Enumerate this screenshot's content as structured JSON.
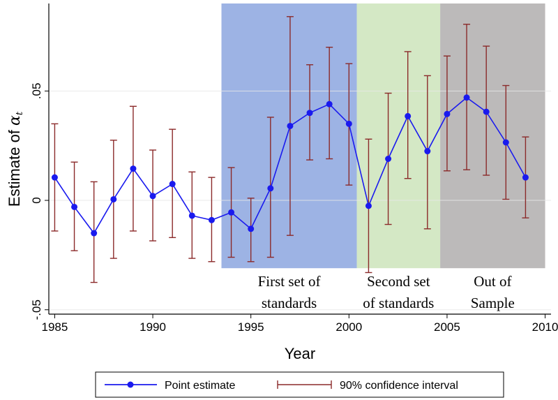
{
  "chart_data": {
    "type": "line",
    "xlabel": "Year",
    "ylabel": "Estimate of ",
    "ylabel_symbol": "α",
    "ylabel_subscript": "t",
    "xlim": [
      1984.7,
      2010.3
    ],
    "ylim": [
      -0.052,
      0.09
    ],
    "x_ticks": [
      {
        "value": 1985,
        "label": "1985"
      },
      {
        "value": 1990,
        "label": "1990"
      },
      {
        "value": 1995,
        "label": "1995"
      },
      {
        "value": 2000,
        "label": "2000"
      },
      {
        "value": 2005,
        "label": "2005"
      },
      {
        "value": 2010,
        "label": "2010"
      }
    ],
    "y_ticks": [
      {
        "value": -0.05,
        "label": "-.05"
      },
      {
        "value": 0,
        "label": "0"
      },
      {
        "value": 0.05,
        "label": ".05"
      }
    ],
    "grid": true,
    "legend_position": "bottom",
    "colors": {
      "point_estimate": "#1a1aee",
      "confidence_interval": "#8b2a2a",
      "region_first": "#9db3e4",
      "region_second": "#d4e8c5",
      "region_out": "#bcbaba",
      "grid": "#e6e6e6"
    },
    "regions": [
      {
        "name": "first",
        "x_start": 1993.5,
        "x_end": 2000.4,
        "y_bottom": -0.031,
        "label_lines": [
          "First set of",
          "standards"
        ]
      },
      {
        "name": "second",
        "x_start": 2000.4,
        "x_end": 2004.65,
        "y_bottom": -0.031,
        "label_lines": [
          "Second set",
          "of  standards"
        ]
      },
      {
        "name": "out",
        "x_start": 2004.65,
        "x_end": 2010.0,
        "y_bottom": -0.031,
        "label_lines": [
          "Out of",
          "Sample"
        ]
      }
    ],
    "series": [
      {
        "name": "Point estimate",
        "x": [
          1985,
          1986,
          1987,
          1988,
          1989,
          1990,
          1991,
          1992,
          1993,
          1994,
          1995,
          1996,
          1997,
          1998,
          1999,
          2000,
          2001,
          2002,
          2003,
          2004,
          2005,
          2006,
          2007,
          2008,
          2009
        ],
        "values": [
          0.0105,
          -0.003,
          -0.015,
          0.0005,
          0.0145,
          0.002,
          0.0075,
          -0.007,
          -0.009,
          -0.0055,
          -0.013,
          0.0055,
          0.034,
          0.04,
          0.044,
          0.035,
          -0.0025,
          0.019,
          0.0385,
          0.0225,
          0.0395,
          0.047,
          0.0405,
          0.0265,
          0.0105
        ]
      },
      {
        "name": "90% confidence interval",
        "x": [
          1985,
          1986,
          1987,
          1988,
          1989,
          1990,
          1991,
          1992,
          1993,
          1994,
          1995,
          1996,
          1997,
          1998,
          1999,
          2000,
          2001,
          2002,
          2003,
          2004,
          2005,
          2006,
          2007,
          2008,
          2009
        ],
        "lower": [
          -0.014,
          -0.023,
          -0.0375,
          -0.0265,
          -0.014,
          -0.0185,
          -0.017,
          -0.0265,
          -0.028,
          -0.026,
          -0.028,
          -0.026,
          -0.016,
          0.0185,
          0.019,
          0.007,
          -0.033,
          -0.011,
          0.01,
          -0.013,
          0.0135,
          0.014,
          0.0115,
          0.0005,
          -0.008
        ],
        "upper": [
          0.035,
          0.0175,
          0.0085,
          0.0275,
          0.043,
          0.023,
          0.0325,
          0.013,
          0.0105,
          0.015,
          0.001,
          0.038,
          0.084,
          0.062,
          0.07,
          0.0625,
          0.028,
          0.049,
          0.068,
          0.057,
          0.066,
          0.0805,
          0.0705,
          0.0525,
          0.029
        ]
      }
    ]
  }
}
